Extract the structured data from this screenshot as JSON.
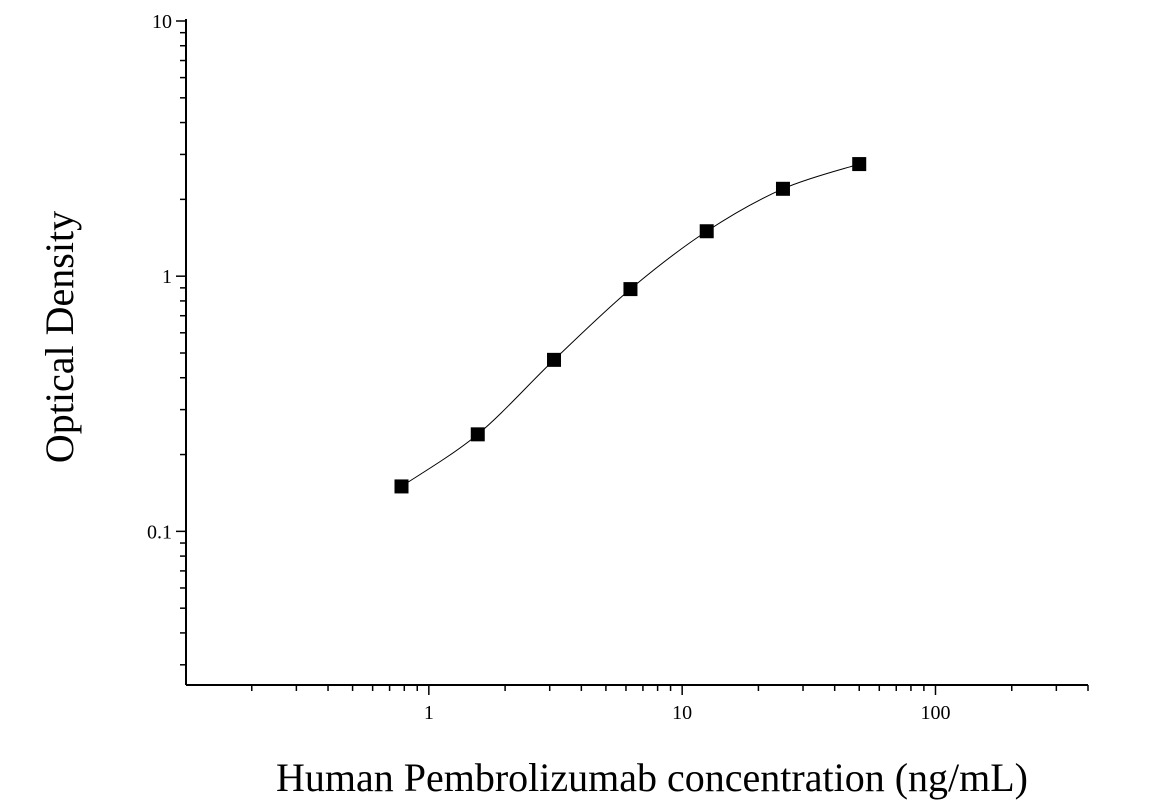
{
  "chart_data": {
    "type": "scatter",
    "title": "",
    "xlabel": "Human Pembrolizumab concentration (ng/mL)",
    "ylabel": "Optical Density",
    "xscale": "log",
    "yscale": "log",
    "xlim": [
      0.11,
      400
    ],
    "ylim": [
      0.025,
      10
    ],
    "x_tick_labels": [
      "1",
      "10",
      "100"
    ],
    "y_tick_labels": [
      "0.1",
      "1",
      "10"
    ],
    "grid": false,
    "legend": "none",
    "series": [
      {
        "marker": "square",
        "color": "#000000",
        "x": [
          0.78,
          1.56,
          3.12,
          6.25,
          12.5,
          25,
          50
        ],
        "y": [
          0.15,
          0.24,
          0.47,
          0.89,
          1.5,
          2.2,
          2.75
        ]
      }
    ],
    "fit_curve": true
  }
}
